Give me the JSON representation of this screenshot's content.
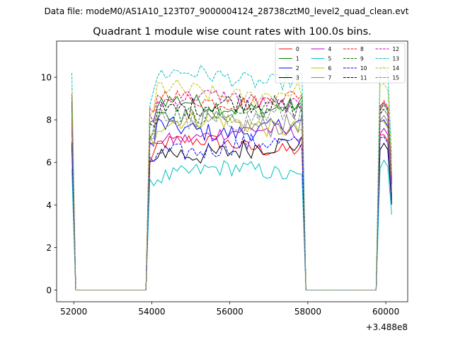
{
  "figure": {
    "suptitle": "Data file: modeM0/AS1A10_123T07_9000004124_28738cztM0_level2_quad_clean.evt"
  },
  "chart_data": {
    "type": "line",
    "title": "Quadrant 1 module wise count rates with 100.0s bins.",
    "xlabel": "",
    "ylabel": "",
    "x_offset_label": "+3.488e8",
    "x_offset": 348800000,
    "xlim": [
      51560,
      60560
    ],
    "ylim": [
      -0.55,
      11.7
    ],
    "xticks": [
      52000,
      54000,
      56000,
      58000,
      60000
    ],
    "yticks": [
      0,
      2,
      4,
      6,
      8,
      10
    ],
    "grid": false,
    "legend": {
      "placement": "upper-right",
      "columns": 4
    },
    "segments": [
      {
        "on": [
          51950,
          52000
        ],
        "note": ""
      },
      {
        "on": [
          53850,
          57950
        ]
      },
      {
        "on": [
          59750,
          60150
        ]
      }
    ],
    "series": [
      {
        "name": "0",
        "color": "#ff0000",
        "dash": "solid",
        "level": 6.8,
        "end": 7.1
      },
      {
        "name": "1",
        "color": "#008000",
        "dash": "solid",
        "level": 8.7,
        "end": 8.6
      },
      {
        "name": "2",
        "color": "#0000ff",
        "dash": "solid",
        "level": 7.6,
        "end": 7.8
      },
      {
        "name": "3",
        "color": "#000000",
        "dash": "solid",
        "level": 6.6,
        "end": 6.7
      },
      {
        "name": "4",
        "color": "#bf00bf",
        "dash": "solid",
        "level": 7.3,
        "end": 7.4
      },
      {
        "name": "5",
        "color": "#00bfbf",
        "dash": "solid",
        "level": 5.5,
        "end": 5.9
      },
      {
        "name": "6",
        "color": "#bfbf00",
        "dash": "solid",
        "level": 7.8,
        "end": 7.7
      },
      {
        "name": "7",
        "color": "#808080",
        "dash": "solid",
        "level": 7.9,
        "end": 8.0
      },
      {
        "name": "8",
        "color": "#ff0000",
        "dash": "dashed",
        "level": 9.0,
        "end": 8.7
      },
      {
        "name": "9",
        "color": "#008000",
        "dash": "dashed",
        "level": 8.4,
        "end": 8.5
      },
      {
        "name": "10",
        "color": "#0000ff",
        "dash": "dashed",
        "level": 6.7,
        "end": 7.0
      },
      {
        "name": "11",
        "color": "#000000",
        "dash": "dashed",
        "level": 8.6,
        "end": 8.3
      },
      {
        "name": "12",
        "color": "#bf00bf",
        "dash": "dashed",
        "level": 8.9,
        "end": 8.6
      },
      {
        "name": "13",
        "color": "#00bfbf",
        "dash": "dashed",
        "level": 10.0,
        "end": 10.3
      },
      {
        "name": "14",
        "color": "#bfbf00",
        "dash": "dashed",
        "level": 9.3,
        "end": 9.5
      },
      {
        "name": "15",
        "color": "#808080",
        "dash": "dashed",
        "level": 8.1,
        "end": 8.3
      }
    ]
  }
}
